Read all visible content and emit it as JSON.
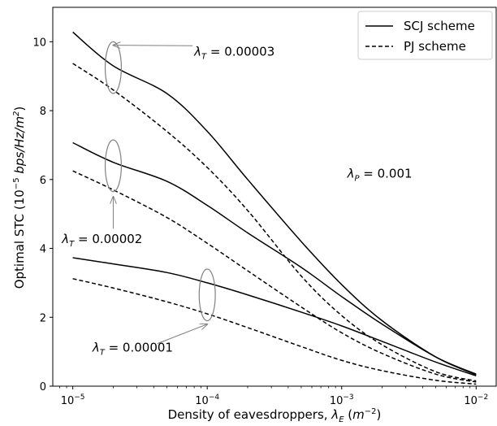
{
  "chart_data": {
    "type": "line",
    "xscale": "log",
    "xlim": [
      7.1e-06,
      0.0141
    ],
    "ylim": [
      0,
      11
    ],
    "xlabel_text": "Density of eavesdroppers, ",
    "xlabel_sym": "λ",
    "xlabel_sub": "E",
    "xlabel_unit_open": " (",
    "xlabel_unit": "m",
    "xlabel_unit_exp": "−2",
    "xlabel_unit_close": ")",
    "ylabel_text": "Optimal STC (10",
    "ylabel_exp": "−5",
    "ylabel_unit": " bps/Hz/m",
    "ylabel_unit_exp": "2",
    "ylabel_close": ")",
    "x_ticks": [
      {
        "value": 1e-05,
        "base": "10",
        "exp": "−5"
      },
      {
        "value": 0.0001,
        "base": "10",
        "exp": "−4"
      },
      {
        "value": 0.001,
        "base": "10",
        "exp": "−3"
      },
      {
        "value": 0.01,
        "base": "10",
        "exp": "−2"
      }
    ],
    "y_ticks": [
      0,
      2,
      4,
      6,
      8,
      10
    ],
    "legend": {
      "placement": "top-right",
      "entries": [
        {
          "label": "SCJ scheme",
          "style": "solid"
        },
        {
          "label": "PJ scheme",
          "style": "dashed"
        }
      ]
    },
    "x": [
      1e-05,
      2e-05,
      5e-05,
      0.0001,
      0.0002,
      0.0005,
      0.001,
      0.002,
      0.005,
      0.01
    ],
    "series": [
      {
        "name": "SCJ scheme",
        "group": "λT = 0.00003",
        "style": "solid",
        "values": [
          10.28,
          9.3,
          8.5,
          7.4,
          6.0,
          4.2,
          2.95,
          1.9,
          0.85,
          0.33
        ]
      },
      {
        "name": "PJ scheme",
        "group": "λT = 0.00003",
        "style": "dashed",
        "values": [
          9.37,
          8.6,
          7.4,
          6.35,
          5.1,
          3.2,
          2.05,
          1.2,
          0.42,
          0.15
        ]
      },
      {
        "name": "SCJ scheme",
        "group": "λT = 0.00002",
        "style": "solid",
        "values": [
          7.07,
          6.5,
          5.95,
          5.25,
          4.45,
          3.45,
          2.6,
          1.8,
          0.85,
          0.35
        ]
      },
      {
        "name": "PJ scheme",
        "group": "λT = 0.00002",
        "style": "dashed",
        "values": [
          6.25,
          5.7,
          4.9,
          4.15,
          3.35,
          2.3,
          1.55,
          0.95,
          0.35,
          0.12
        ]
      },
      {
        "name": "SCJ scheme",
        "group": "λT = 0.00001",
        "style": "solid",
        "values": [
          3.73,
          3.55,
          3.3,
          3.0,
          2.65,
          2.15,
          1.75,
          1.3,
          0.7,
          0.3
        ]
      },
      {
        "name": "PJ scheme",
        "group": "λT = 0.00001",
        "style": "dashed",
        "values": [
          3.12,
          2.85,
          2.45,
          2.1,
          1.7,
          1.15,
          0.75,
          0.45,
          0.17,
          0.06
        ]
      }
    ],
    "annotations": [
      {
        "name": "annotation-lambda-t-3",
        "sym": "λ",
        "sub": "T",
        "text": " = 0.00003",
        "x": 8e-05,
        "y": 9.6,
        "arrow_to": {
          "x": 2e-05,
          "y": 9.9
        },
        "ellipse": {
          "x": 2e-05,
          "y": 9.25,
          "rx_decades": 0.06,
          "ry_units": 0.75
        }
      },
      {
        "name": "annotation-lambda-p",
        "sym": "λ",
        "sub": "P",
        "text": " = 0.001",
        "x": 0.0011,
        "y": 6.05,
        "arrow_to": null,
        "ellipse": null
      },
      {
        "name": "annotation-lambda-t-2",
        "sym": "λ",
        "sub": "T",
        "text": " = 0.00002",
        "x": 8.3e-06,
        "y": 4.15,
        "arrow_to": {
          "x": 2e-05,
          "y": 5.5
        },
        "ellipse": {
          "x": 2e-05,
          "y": 6.4,
          "rx_decades": 0.06,
          "ry_units": 0.75
        }
      },
      {
        "name": "annotation-lambda-t-1",
        "sym": "λ",
        "sub": "T",
        "text": " = 0.00001",
        "x": 1.4e-05,
        "y": 1.0,
        "arrow_to": {
          "x": 0.0001,
          "y": 1.8
        },
        "ellipse": {
          "x": 0.0001,
          "y": 2.65,
          "rx_decades": 0.06,
          "ry_units": 0.75
        }
      }
    ],
    "grid": false,
    "colors": {
      "line": "#000000",
      "annotation": "#808080"
    }
  }
}
